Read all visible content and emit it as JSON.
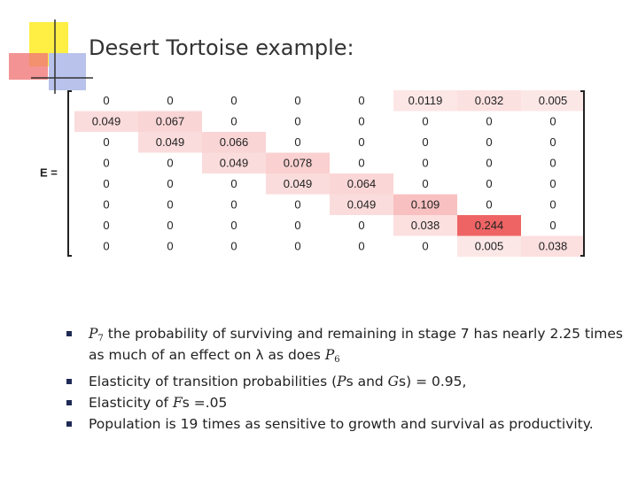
{
  "title": "Desert Tortoise example:",
  "matrix": {
    "label": "E =",
    "rows": [
      [
        0,
        0,
        0,
        0,
        0,
        0.0119,
        0.032,
        0.005
      ],
      [
        0.049,
        0.067,
        0,
        0,
        0,
        0,
        0,
        0
      ],
      [
        0,
        0.049,
        0.066,
        0,
        0,
        0,
        0,
        0
      ],
      [
        0,
        0,
        0.049,
        0.078,
        0,
        0,
        0,
        0
      ],
      [
        0,
        0,
        0,
        0.049,
        0.064,
        0,
        0,
        0
      ],
      [
        0,
        0,
        0,
        0,
        0.049,
        0.109,
        0,
        0
      ],
      [
        0,
        0,
        0,
        0,
        0,
        0.038,
        0.244,
        0
      ],
      [
        0,
        0,
        0,
        0,
        0,
        0,
        0.005,
        0.038
      ]
    ]
  },
  "bullets": [
    [
      "P",
      "7",
      " the probability of surviving and remaining in stage 7 has nearly 2.25 times as much of an effect on ",
      "λ",
      " as does ",
      "P",
      "6"
    ],
    [
      "Elasticity of transition probabilities (",
      "P",
      "s and ",
      "G",
      "s) = 0.95,"
    ],
    [
      "Elasticity of ",
      "F",
      "s =.05"
    ],
    [
      "Population is 19 times as sensitive to growth and survival as productivity."
    ]
  ]
}
